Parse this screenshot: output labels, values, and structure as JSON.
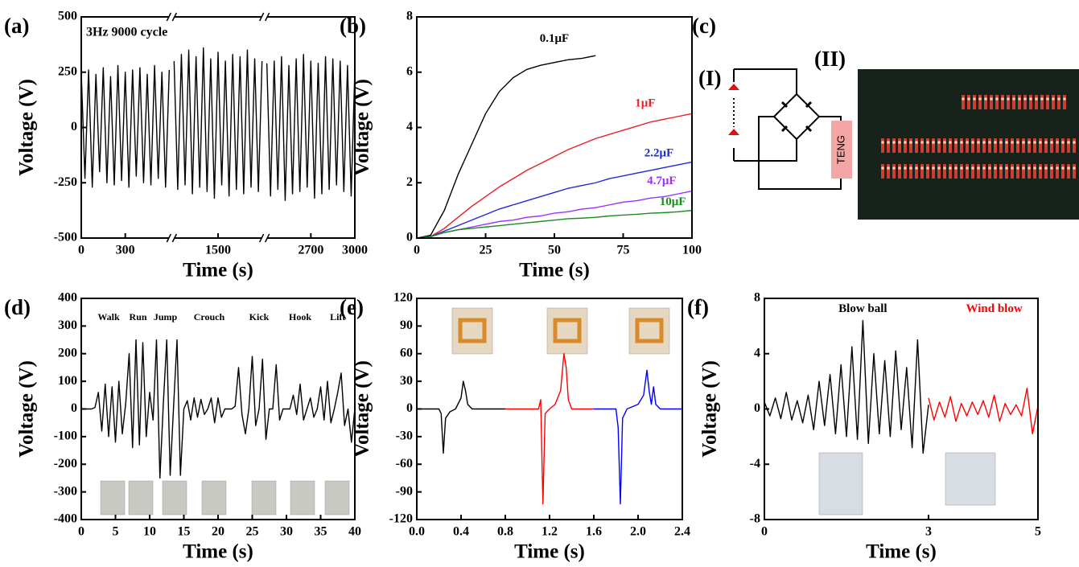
{
  "chart_data": [
    {
      "type": "line",
      "panel_label": "(a)",
      "title": "3Hz 9000 cycle",
      "xlabel": "Time (s)",
      "ylabel": "Voltage (V)",
      "xlim": [
        0,
        3000
      ],
      "xbreaks": [
        [
          600,
          1200
        ],
        [
          1800,
          2400
        ]
      ],
      "ylim": [
        -500,
        500
      ],
      "xticks": [
        0,
        300,
        1500,
        2700,
        3000
      ],
      "yticks": [
        -500,
        -250,
        0,
        250,
        500
      ],
      "x": [
        0,
        25,
        50,
        75,
        100,
        125,
        150,
        175,
        200,
        225,
        250,
        275,
        300,
        325,
        350,
        375,
        400,
        425,
        450,
        475,
        500,
        525,
        550,
        575,
        600,
        900,
        1200,
        1225,
        1250,
        1275,
        1300,
        1325,
        1350,
        1375,
        1400,
        1425,
        1450,
        1475,
        1500,
        1525,
        1550,
        1575,
        1600,
        1625,
        1650,
        1675,
        1700,
        1725,
        1750,
        1775,
        1800,
        2100,
        2400,
        2425,
        2450,
        2475,
        2500,
        2525,
        2550,
        2575,
        2600,
        2625,
        2650,
        2675,
        2700,
        2725,
        2750,
        2775,
        2800,
        2825,
        2850,
        2875,
        2900,
        2925,
        2950,
        2975,
        3000
      ],
      "series": [
        {
          "color": "#000000",
          "values": [
            250,
            -230,
            260,
            -270,
            240,
            -200,
            270,
            -250,
            230,
            -260,
            280,
            -240,
            250,
            -270,
            260,
            -220,
            270,
            -250,
            240,
            -260,
            280,
            -230,
            250,
            -270,
            260,
            null,
            300,
            -280,
            330,
            -260,
            350,
            -300,
            320,
            -270,
            360,
            -290,
            310,
            -320,
            340,
            -260,
            300,
            -310,
            330,
            -280,
            320,
            -300,
            350,
            -270,
            310,
            -290,
            300,
            null,
            290,
            -310,
            300,
            -280,
            320,
            -330,
            280,
            -300,
            310,
            -290,
            330,
            -270,
            300,
            -320,
            290,
            -300,
            320,
            -280,
            310,
            -260,
            300,
            -290,
            280,
            -310,
            260
          ]
        }
      ]
    },
    {
      "type": "line",
      "panel_label": "(b)",
      "xlabel": "Time (s)",
      "ylabel": "Voltage (V)",
      "xlim": [
        0,
        100
      ],
      "ylim": [
        0,
        8
      ],
      "xticks": [
        0,
        25,
        50,
        75,
        100
      ],
      "yticks": [
        0,
        2,
        4,
        6,
        8
      ],
      "x": [
        0,
        5,
        10,
        15,
        20,
        25,
        30,
        35,
        40,
        45,
        50,
        55,
        60,
        65,
        70,
        75,
        80,
        85,
        90,
        95,
        100
      ],
      "series": [
        {
          "name": "0.1μF",
          "color": "#000000",
          "values": [
            0,
            0.1,
            1.0,
            2.3,
            3.4,
            4.5,
            5.3,
            5.8,
            6.1,
            6.25,
            6.35,
            6.45,
            6.5,
            6.6,
            null,
            null,
            null,
            null,
            null,
            null,
            null
          ]
        },
        {
          "name": "1μF",
          "color": "#ee1c25",
          "values": [
            0,
            0.05,
            0.35,
            0.75,
            1.15,
            1.5,
            1.85,
            2.15,
            2.45,
            2.7,
            2.95,
            3.2,
            3.4,
            3.6,
            3.75,
            3.9,
            4.05,
            4.2,
            4.3,
            4.4,
            4.5
          ]
        },
        {
          "name": "2.2μF",
          "color": "#1f28d8",
          "values": [
            0,
            0.05,
            0.25,
            0.45,
            0.65,
            0.85,
            1.05,
            1.2,
            1.35,
            1.5,
            1.65,
            1.8,
            1.9,
            2.0,
            2.15,
            2.25,
            2.35,
            2.45,
            2.55,
            2.65,
            2.75
          ]
        },
        {
          "name": "4.7μF",
          "color": "#9b30ff",
          "values": [
            0,
            0.05,
            0.2,
            0.3,
            0.4,
            0.5,
            0.6,
            0.65,
            0.75,
            0.8,
            0.9,
            0.95,
            1.05,
            1.1,
            1.2,
            1.3,
            1.35,
            1.45,
            1.5,
            1.6,
            1.7
          ]
        },
        {
          "name": "10μF",
          "color": "#1e8b1e",
          "values": [
            0,
            0.05,
            0.2,
            0.3,
            0.35,
            0.4,
            0.45,
            0.5,
            0.55,
            0.6,
            0.65,
            0.7,
            0.72,
            0.75,
            0.8,
            0.83,
            0.86,
            0.9,
            0.92,
            0.95,
            1.0
          ]
        }
      ]
    },
    {
      "type": "line",
      "panel_label": "(d)",
      "xlabel": "Time (s)",
      "ylabel": "Voltage (V)",
      "xlim": [
        0,
        40
      ],
      "ylim": [
        -400,
        400
      ],
      "xticks": [
        0,
        5,
        10,
        15,
        20,
        25,
        30,
        35,
        40
      ],
      "yticks": [
        -400,
        -300,
        -200,
        -100,
        0,
        100,
        200,
        300,
        400
      ],
      "annotations": [
        "Walk",
        "Run",
        "Jump",
        "Crouch",
        "Kick",
        "Hook",
        "Lift"
      ],
      "x": [
        0,
        0.5,
        1,
        1.5,
        2,
        2.5,
        3,
        3.5,
        4,
        4.5,
        5,
        5.5,
        6,
        6.5,
        7,
        7.5,
        8,
        8.5,
        9,
        9.5,
        10,
        10.5,
        11,
        11.5,
        12,
        12.5,
        13,
        13.5,
        14,
        14.5,
        15,
        15.5,
        16,
        16.5,
        17,
        17.5,
        18,
        18.5,
        19,
        19.5,
        20,
        20.5,
        21,
        21.5,
        22,
        22.5,
        23,
        23.5,
        24,
        24.5,
        25,
        25.5,
        26,
        26.5,
        27,
        27.5,
        28,
        28.5,
        29,
        29.5,
        30,
        30.5,
        31,
        31.5,
        32,
        32.5,
        33,
        33.5,
        34,
        34.5,
        35,
        35.5,
        36,
        36.5,
        37,
        37.5,
        38,
        38.5,
        39,
        39.5,
        40
      ],
      "series": [
        {
          "color": "#000000",
          "values": [
            0,
            0,
            0,
            0,
            5,
            60,
            -80,
            90,
            -100,
            80,
            -120,
            100,
            -90,
            20,
            200,
            -140,
            250,
            -130,
            240,
            -100,
            60,
            -40,
            250,
            -250,
            20,
            250,
            -240,
            10,
            250,
            -240,
            0,
            30,
            -40,
            40,
            -30,
            35,
            -20,
            0,
            40,
            -50,
            40,
            -30,
            0,
            0,
            0,
            10,
            150,
            -20,
            -90,
            0,
            190,
            -60,
            0,
            180,
            -110,
            0,
            0,
            160,
            -40,
            0,
            0,
            0,
            50,
            -20,
            90,
            -40,
            0,
            40,
            -30,
            0,
            80,
            -40,
            100,
            -50,
            0,
            60,
            130,
            -60,
            0,
            -120,
            0
          ]
        }
      ]
    },
    {
      "type": "line",
      "panel_label": "(e)",
      "xlabel": "Time (s)",
      "ylabel": "Voltage (V)",
      "xlim": [
        0,
        2.4
      ],
      "ylim": [
        -120,
        120
      ],
      "xticks": [
        {
          "value": 0,
          "label": "0.0"
        },
        0.4,
        0.8,
        1.2,
        1.6,
        {
          "value": 2,
          "label": "2.0"
        },
        2.4
      ],
      "yticks": [
        -120,
        -90,
        -60,
        -30,
        0,
        30,
        60,
        90,
        120
      ],
      "series": [
        {
          "color": "#000000",
          "x": [
            0,
            0.05,
            0.1,
            0.15,
            0.2,
            0.22,
            0.24,
            0.26,
            0.3,
            0.35,
            0.4,
            0.42,
            0.44,
            0.46,
            0.5,
            0.6,
            0.7,
            0.8
          ],
          "values": [
            0,
            0,
            0,
            0,
            0,
            -5,
            -48,
            -10,
            -3,
            0,
            12,
            30,
            20,
            5,
            0,
            0,
            0,
            0
          ]
        },
        {
          "color": "#ff0000",
          "x": [
            0.8,
            0.9,
            1.0,
            1.1,
            1.12,
            1.14,
            1.16,
            1.2,
            1.25,
            1.3,
            1.33,
            1.35,
            1.37,
            1.4,
            1.5,
            1.6
          ],
          "values": [
            0,
            0,
            0,
            0,
            10,
            -103,
            -5,
            0,
            5,
            20,
            60,
            45,
            10,
            0,
            0,
            0
          ]
        },
        {
          "color": "#0000ff",
          "x": [
            1.6,
            1.7,
            1.8,
            1.82,
            1.84,
            1.86,
            1.9,
            2.0,
            2.05,
            2.08,
            2.1,
            2.12,
            2.14,
            2.16,
            2.2,
            2.3,
            2.4
          ],
          "values": [
            0,
            0,
            0,
            -20,
            -103,
            -10,
            0,
            5,
            15,
            42,
            20,
            5,
            24,
            5,
            0,
            0,
            0
          ]
        }
      ]
    },
    {
      "type": "line",
      "panel_label": "(f)",
      "xlabel": "Time (s)",
      "ylabel": "Voltage (V)",
      "xlim": [
        0,
        5
      ],
      "ylim": [
        -8,
        8
      ],
      "xticks": [
        0,
        3,
        5
      ],
      "yticks": [
        -8,
        -4,
        0,
        4,
        8
      ],
      "series": [
        {
          "name": "Blow ball",
          "color": "#000000",
          "x": [
            0,
            0.1,
            0.2,
            0.3,
            0.4,
            0.5,
            0.6,
            0.7,
            0.8,
            0.9,
            1,
            1.1,
            1.2,
            1.3,
            1.4,
            1.5,
            1.6,
            1.7,
            1.8,
            1.9,
            2,
            2.1,
            2.2,
            2.3,
            2.4,
            2.5,
            2.6,
            2.7,
            2.8,
            2.9,
            3
          ],
          "values": [
            0.5,
            -0.5,
            0.8,
            -0.7,
            1.2,
            -0.8,
            0.6,
            -1.0,
            1.0,
            -1.5,
            2.0,
            -1.2,
            2.5,
            -1.8,
            3.2,
            -2.0,
            4.5,
            -2.2,
            6.4,
            -2.5,
            4.0,
            -1.8,
            3.5,
            -2.0,
            4.2,
            -1.5,
            3.0,
            -2.8,
            5.0,
            -3.2,
            0.3
          ]
        },
        {
          "name": "Wind blow",
          "color": "#ff0000",
          "x": [
            3,
            3.1,
            3.2,
            3.3,
            3.4,
            3.5,
            3.6,
            3.7,
            3.8,
            3.9,
            4,
            4.1,
            4.2,
            4.3,
            4.4,
            4.5,
            4.6,
            4.7,
            4.8,
            4.9,
            5
          ],
          "values": [
            0.8,
            -0.8,
            0.5,
            -0.6,
            0.9,
            -0.9,
            0.4,
            -0.5,
            0.5,
            -0.4,
            0.6,
            -0.6,
            1.0,
            -0.9,
            0.4,
            -0.4,
            0.3,
            -0.5,
            1.5,
            -1.8,
            0.2
          ]
        }
      ]
    }
  ],
  "diagram": {
    "panel_label": "(c)",
    "part_labels": [
      "(I)",
      "(II)"
    ],
    "source_label": "TENG"
  }
}
